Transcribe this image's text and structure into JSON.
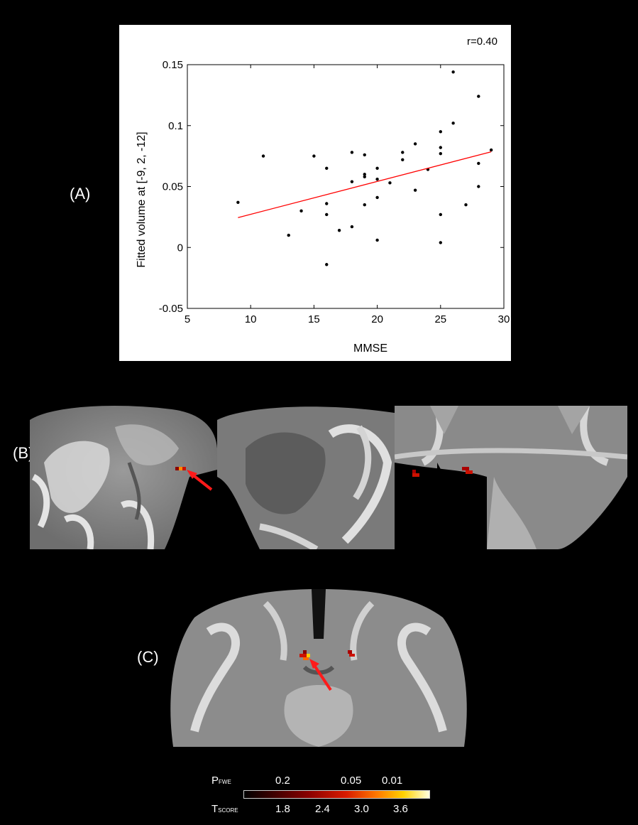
{
  "panels": {
    "a": "(A)",
    "b": "(B)",
    "c": "(C)"
  },
  "chart_data": {
    "type": "scatter",
    "title": "",
    "annotation": "r=0.40",
    "xlabel": "MMSE",
    "ylabel": "Fitted volume at [-9, 2, -12]",
    "xlim": [
      5,
      30
    ],
    "ylim": [
      -0.05,
      0.15
    ],
    "xticks": [
      5,
      10,
      15,
      20,
      25,
      30
    ],
    "yticks": [
      -0.05,
      0,
      0.05,
      0.1,
      0.15
    ],
    "ytick_labels": [
      "-0.05",
      "0",
      "0.05",
      "0.1",
      "0.15"
    ],
    "grid": false,
    "points": [
      [
        9,
        0.037
      ],
      [
        11,
        0.075
      ],
      [
        13,
        0.01
      ],
      [
        14,
        0.03
      ],
      [
        15,
        0.075
      ],
      [
        16,
        0.065
      ],
      [
        16,
        0.036
      ],
      [
        16,
        0.027
      ],
      [
        16,
        -0.014
      ],
      [
        17,
        0.014
      ],
      [
        18,
        0.078
      ],
      [
        18,
        0.054
      ],
      [
        18,
        0.017
      ],
      [
        19,
        0.076
      ],
      [
        19,
        0.06
      ],
      [
        19,
        0.058
      ],
      [
        19,
        0.035
      ],
      [
        20,
        0.065
      ],
      [
        20,
        0.056
      ],
      [
        20,
        0.041
      ],
      [
        20,
        0.006
      ],
      [
        21,
        0.053
      ],
      [
        22,
        0.078
      ],
      [
        22,
        0.072
      ],
      [
        23,
        0.085
      ],
      [
        23,
        0.047
      ],
      [
        24,
        0.064
      ],
      [
        25,
        0.095
      ],
      [
        25,
        0.082
      ],
      [
        25,
        0.077
      ],
      [
        25,
        0.027
      ],
      [
        25,
        0.004
      ],
      [
        26,
        0.144
      ],
      [
        26,
        0.102
      ],
      [
        27,
        0.035
      ],
      [
        28,
        0.124
      ],
      [
        28,
        0.069
      ],
      [
        28,
        0.05
      ],
      [
        29,
        0.08
      ]
    ],
    "fit_line": {
      "x": [
        9,
        29
      ],
      "y": [
        0.0245,
        0.0785
      ],
      "color": "#ff0000"
    },
    "point_color": "#000000"
  },
  "colorbar": {
    "p_label": "P",
    "p_sub": "FWE",
    "t_label": "T",
    "t_sub": "SCORE",
    "p_ticks": [
      "0.2",
      "0.05",
      "0.01"
    ],
    "t_ticks": [
      "1.8",
      "2.4",
      "3.0",
      "3.6"
    ]
  }
}
